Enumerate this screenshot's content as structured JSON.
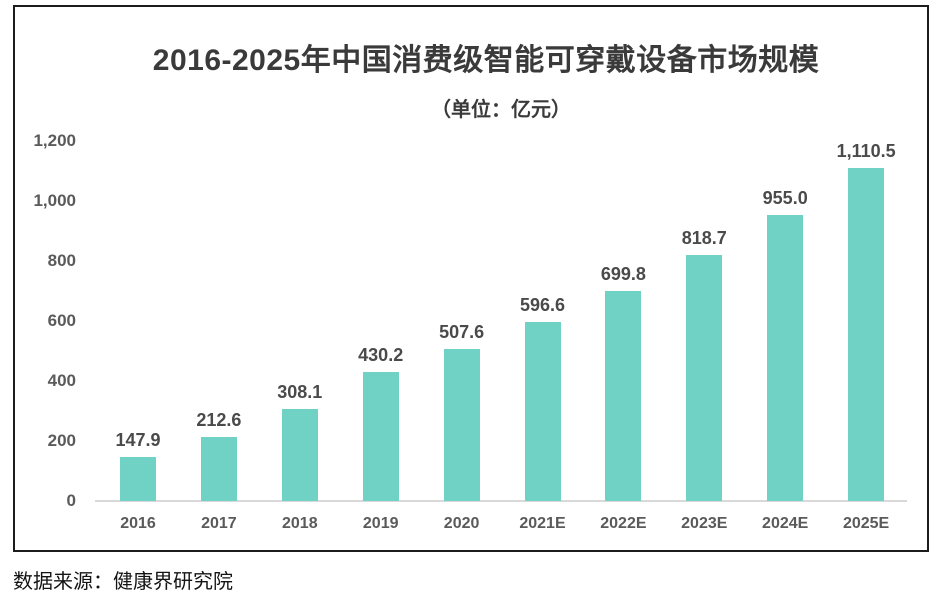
{
  "page": {
    "background": "#ffffff"
  },
  "chart": {
    "title": "2016-2025年中国消费级智能可穿戴设备市场规模",
    "subtitle": "（单位：亿元）"
  },
  "source_note": "数据来源：健康界研究院",
  "colors": {
    "bar": "#6FD2C4",
    "title_text": "#3A3A3A",
    "value_label_text": "#4A4A4A",
    "tick_text": "#5A5A5A",
    "axis_line": "#D9D9D9",
    "box_border": "#1C1C1C"
  },
  "chart_data": {
    "type": "bar",
    "title": "2016-2025年中国消费级智能可穿戴设备市场规模",
    "unit_label": "（单位：亿元）",
    "categories": [
      "2016",
      "2017",
      "2018",
      "2019",
      "2020",
      "2021E",
      "2022E",
      "2023E",
      "2024E",
      "2025E"
    ],
    "values": [
      147.9,
      212.6,
      308.1,
      430.2,
      507.6,
      596.6,
      699.8,
      818.7,
      955.0,
      1110.5
    ],
    "value_labels": [
      "147.9",
      "212.6",
      "308.1",
      "430.2",
      "507.6",
      "596.6",
      "699.8",
      "818.7",
      "955.0",
      "1,110.5"
    ],
    "xlabel": "",
    "ylabel": "",
    "ylim": [
      0,
      1200
    ],
    "y_tick_interval": 200,
    "y_tick_values": [
      0,
      200,
      400,
      600,
      800,
      1000,
      1200
    ],
    "y_tick_labels": [
      "0",
      "200",
      "400",
      "600",
      "800",
      "1,000",
      "1,200"
    ],
    "grid": false,
    "legend": "none",
    "bar_color": "#6FD2C4",
    "source": "数据来源：健康界研究院"
  }
}
